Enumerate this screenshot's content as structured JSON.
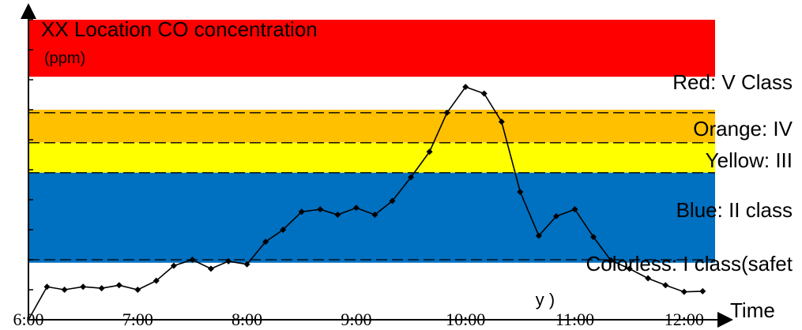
{
  "chart_data": {
    "type": "line",
    "title": "XX Location CO concentration",
    "title_unit_fragment": "(ppm)",
    "xlabel": "Time",
    "ylabel": "",
    "x_ticks": [
      "6:00",
      "7:00",
      "8:00",
      "9:00",
      "10:00",
      "11:00",
      "12:00"
    ],
    "x_range_hours": [
      6.0,
      12.4
    ],
    "ylim": [
      0,
      100
    ],
    "grid": false,
    "legend": "none",
    "bands": [
      {
        "label": "Red: V Class",
        "color": "#ff0000",
        "from": 81,
        "to": 100
      },
      {
        "label": "Orange: IV",
        "color": "#ffc000",
        "from": 59,
        "to": 70
      },
      {
        "label": "Yellow: III",
        "color": "#ffff00",
        "from": 49,
        "to": 59
      },
      {
        "label": "Blue: II class",
        "color": "#0070c0",
        "from": 19,
        "to": 49
      },
      {
        "label": "Colorless: I class(safet",
        "label_tail": "y )",
        "color": "#ffffff",
        "from": 0,
        "to": 19
      }
    ],
    "dashed_levels": [
      69,
      59,
      49,
      20
    ],
    "series": [
      {
        "line_color": "#000000",
        "x": [
          6.0,
          6.17,
          6.33,
          6.5,
          6.67,
          6.83,
          7.0,
          7.17,
          7.33,
          7.5,
          7.67,
          7.83,
          8.0,
          8.17,
          8.33,
          8.5,
          8.67,
          8.83,
          9.0,
          9.17,
          9.33,
          9.5,
          9.67,
          9.83,
          10.0,
          10.17,
          10.33,
          10.5,
          10.67,
          10.83,
          11.0,
          11.17,
          11.33,
          11.5,
          11.67,
          11.83,
          12.0,
          12.17
        ],
        "values": [
          0,
          11,
          10,
          11,
          10.5,
          11.5,
          10,
          13,
          18,
          20,
          17,
          19.5,
          18.5,
          26,
          30,
          36,
          36.8,
          35,
          37.3,
          35,
          39.6,
          47.5,
          56,
          69,
          77.6,
          75.4,
          66,
          42.6,
          28,
          34.5,
          36.8,
          27.6,
          19.8,
          17,
          13.8,
          11.5,
          9.3,
          9.5
        ]
      }
    ]
  }
}
